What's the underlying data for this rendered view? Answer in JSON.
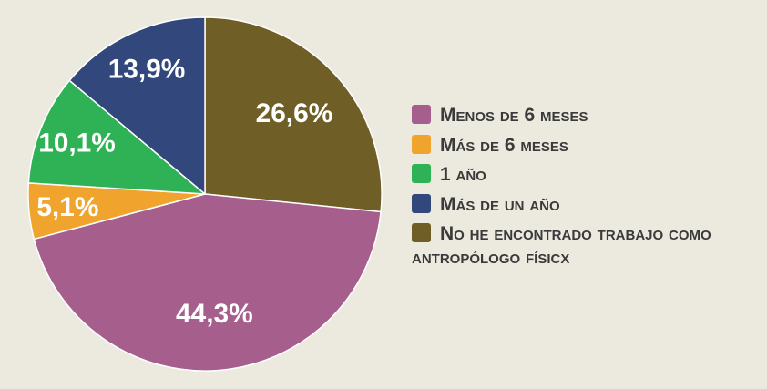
{
  "background_color": "#ece9df",
  "chart_data": {
    "type": "pie",
    "title": "",
    "direction": "clockwise",
    "start_angle_deg": 0,
    "legend_position": "right",
    "label_text_color": "#ffffff",
    "legend_text_color": "#3a3a3a",
    "slices": [
      {
        "label": "No he encontrado trabajo como antropólogo físicx",
        "value": 26.6,
        "value_label": "26,6%",
        "color": "#6f5e26"
      },
      {
        "label": "Menos de 6 meses",
        "value": 44.3,
        "value_label": "44,3%",
        "color": "#a65e8c"
      },
      {
        "label": "Más de 6 meses",
        "value": 5.1,
        "value_label": "5,1%",
        "color": "#f0a42e"
      },
      {
        "label": "1 año",
        "value": 10.1,
        "value_label": "10,1%",
        "color": "#2fb155"
      },
      {
        "label": "Más de un año",
        "value": 13.9,
        "value_label": "13,9%",
        "color": "#32477b"
      }
    ],
    "legend": [
      {
        "label": "Menos de 6 meses",
        "color": "#a65e8c"
      },
      {
        "label": "Más de 6 meses",
        "color": "#f0a42e"
      },
      {
        "label": "1 año",
        "color": "#2fb155"
      },
      {
        "label": "Más de un año",
        "color": "#32477b"
      },
      {
        "label": "No he encontrado trabajo como antropólogo físicx",
        "color": "#6f5e26"
      }
    ]
  }
}
